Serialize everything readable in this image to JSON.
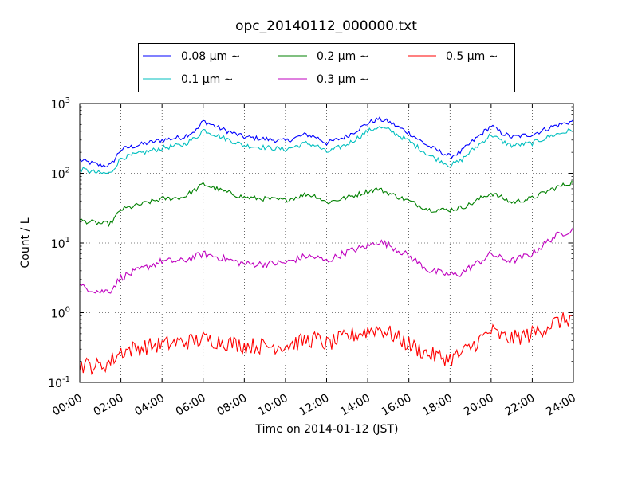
{
  "chart_data": {
    "type": "line",
    "title": "opc_20140112_000000.txt",
    "xlabel": "Time on 2014-01-12 (JST)",
    "ylabel": "Count / L",
    "x_range_hours": [
      0,
      24
    ],
    "x_ticks": [
      "00:00",
      "02:00",
      "04:00",
      "06:00",
      "08:00",
      "10:00",
      "12:00",
      "14:00",
      "16:00",
      "18:00",
      "20:00",
      "22:00",
      "24:00"
    ],
    "y_scale": "log",
    "ylim": [
      0.1,
      1000
    ],
    "y_ticks": [
      {
        "value": 0.1,
        "base": "10",
        "exp": "-1"
      },
      {
        "value": 1,
        "base": "10",
        "exp": "0"
      },
      {
        "value": 10,
        "base": "10",
        "exp": "1"
      },
      {
        "value": 100,
        "base": "10",
        "exp": "2"
      },
      {
        "value": 1000,
        "base": "10",
        "exp": "3"
      }
    ],
    "grid": true,
    "legend_position": "top-center, above plot",
    "series": [
      {
        "name": "0.08 μm ∼",
        "color": "#0000ff",
        "points": [
          [
            0,
            155
          ],
          [
            1,
            130
          ],
          [
            1.5,
            130
          ],
          [
            2,
            220
          ],
          [
            3,
            260
          ],
          [
            4,
            300
          ],
          [
            5,
            330
          ],
          [
            5.7,
            420
          ],
          [
            6,
            560
          ],
          [
            7,
            420
          ],
          [
            8,
            330
          ],
          [
            9,
            310
          ],
          [
            10,
            290
          ],
          [
            11,
            360
          ],
          [
            11.5,
            330
          ],
          [
            12,
            270
          ],
          [
            13,
            340
          ],
          [
            14,
            520
          ],
          [
            14.5,
            600
          ],
          [
            15,
            550
          ],
          [
            16,
            380
          ],
          [
            17,
            240
          ],
          [
            18,
            175
          ],
          [
            18.5,
            200
          ],
          [
            19,
            270
          ],
          [
            19.5,
            360
          ],
          [
            20,
            480
          ],
          [
            20.5,
            380
          ],
          [
            21,
            330
          ],
          [
            22,
            360
          ],
          [
            23,
            470
          ],
          [
            24,
            560
          ]
        ]
      },
      {
        "name": "0.1 μm ∼",
        "color": "#00bfbf",
        "points": [
          [
            0,
            115
          ],
          [
            1,
            100
          ],
          [
            1.5,
            100
          ],
          [
            2,
            165
          ],
          [
            3,
            195
          ],
          [
            4,
            230
          ],
          [
            5,
            255
          ],
          [
            5.7,
            330
          ],
          [
            6,
            420
          ],
          [
            7,
            320
          ],
          [
            8,
            250
          ],
          [
            9,
            235
          ],
          [
            10,
            220
          ],
          [
            11,
            270
          ],
          [
            11.5,
            250
          ],
          [
            12,
            200
          ],
          [
            13,
            260
          ],
          [
            14,
            400
          ],
          [
            14.5,
            460
          ],
          [
            15,
            420
          ],
          [
            16,
            290
          ],
          [
            17,
            180
          ],
          [
            18,
            130
          ],
          [
            18.5,
            150
          ],
          [
            19,
            205
          ],
          [
            19.5,
            270
          ],
          [
            20,
            360
          ],
          [
            20.5,
            290
          ],
          [
            21,
            250
          ],
          [
            22,
            270
          ],
          [
            23,
            350
          ],
          [
            24,
            420
          ]
        ]
      },
      {
        "name": "0.2 μm ∼",
        "color": "#008000",
        "points": [
          [
            0,
            21
          ],
          [
            1,
            19
          ],
          [
            1.5,
            19
          ],
          [
            2,
            30
          ],
          [
            3,
            36
          ],
          [
            4,
            43
          ],
          [
            5,
            45
          ],
          [
            5.7,
            60
          ],
          [
            6,
            70
          ],
          [
            7,
            55
          ],
          [
            8,
            45
          ],
          [
            9,
            43
          ],
          [
            10,
            41
          ],
          [
            11,
            50
          ],
          [
            11.5,
            47
          ],
          [
            12,
            38
          ],
          [
            13,
            45
          ],
          [
            14,
            55
          ],
          [
            14.5,
            60
          ],
          [
            15,
            52
          ],
          [
            16,
            40
          ],
          [
            17,
            30
          ],
          [
            18,
            30
          ],
          [
            18.5,
            32
          ],
          [
            19,
            36
          ],
          [
            19.5,
            44
          ],
          [
            20,
            52
          ],
          [
            20.5,
            45
          ],
          [
            21,
            38
          ],
          [
            22,
            44
          ],
          [
            23,
            60
          ],
          [
            24,
            75
          ]
        ]
      },
      {
        "name": "0.3 μm ∼",
        "color": "#bf00bf",
        "points": [
          [
            0,
            2.4
          ],
          [
            1,
            2.0
          ],
          [
            1.5,
            2.1
          ],
          [
            2,
            3.2
          ],
          [
            3,
            4.2
          ],
          [
            4,
            5.5
          ],
          [
            5,
            5.5
          ],
          [
            5.7,
            6.5
          ],
          [
            6,
            7.0
          ],
          [
            7,
            6.0
          ],
          [
            8,
            5.0
          ],
          [
            9,
            5.0
          ],
          [
            10,
            5.2
          ],
          [
            11,
            6.5
          ],
          [
            11.5,
            6.2
          ],
          [
            12,
            5.5
          ],
          [
            13,
            7.5
          ],
          [
            14,
            9.0
          ],
          [
            14.5,
            10.5
          ],
          [
            15,
            9.5
          ],
          [
            16,
            6.5
          ],
          [
            17,
            4.0
          ],
          [
            18,
            3.5
          ],
          [
            18.5,
            3.6
          ],
          [
            19,
            4.5
          ],
          [
            19.5,
            5.5
          ],
          [
            20,
            7.0
          ],
          [
            20.5,
            6.0
          ],
          [
            21,
            5.5
          ],
          [
            22,
            7.0
          ],
          [
            23,
            12
          ],
          [
            24,
            16
          ]
        ]
      },
      {
        "name": "0.5 μm ∼",
        "color": "#ff0000",
        "points": [
          [
            0,
            0.18
          ],
          [
            1,
            0.17
          ],
          [
            1.5,
            0.2
          ],
          [
            2,
            0.28
          ],
          [
            3,
            0.32
          ],
          [
            4,
            0.35
          ],
          [
            5,
            0.38
          ],
          [
            5.7,
            0.4
          ],
          [
            6,
            0.42
          ],
          [
            7,
            0.38
          ],
          [
            8,
            0.34
          ],
          [
            9,
            0.33
          ],
          [
            10,
            0.34
          ],
          [
            11,
            0.4
          ],
          [
            11.5,
            0.42
          ],
          [
            12,
            0.35
          ],
          [
            13,
            0.45
          ],
          [
            14,
            0.55
          ],
          [
            14.5,
            0.6
          ],
          [
            15,
            0.52
          ],
          [
            16,
            0.35
          ],
          [
            17,
            0.25
          ],
          [
            18,
            0.22
          ],
          [
            18.5,
            0.25
          ],
          [
            19,
            0.32
          ],
          [
            19.5,
            0.42
          ],
          [
            20,
            0.55
          ],
          [
            20.5,
            0.45
          ],
          [
            21,
            0.42
          ],
          [
            22,
            0.5
          ],
          [
            23,
            0.7
          ],
          [
            24,
            0.85
          ]
        ]
      }
    ]
  }
}
